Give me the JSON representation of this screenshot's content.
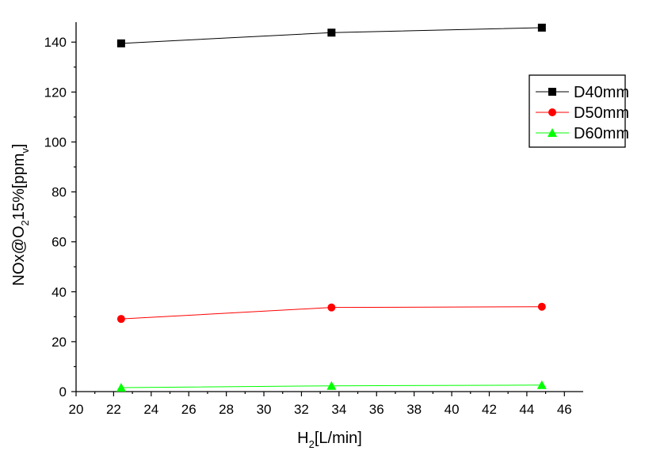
{
  "chart_data": {
    "type": "line",
    "x": [
      22.4,
      33.6,
      44.8
    ],
    "xlim": [
      20,
      47
    ],
    "ylim": [
      0,
      148
    ],
    "xticks": [
      20,
      22,
      24,
      26,
      28,
      30,
      32,
      34,
      36,
      38,
      40,
      42,
      44,
      46
    ],
    "yticks": [
      0,
      20,
      40,
      60,
      80,
      100,
      120,
      140
    ],
    "xlabel": {
      "main": "H",
      "sub": "2",
      "rest": "[L/min]"
    },
    "ylabel": {
      "a": "NOx@O",
      "sub1": "2",
      "b": "15%[ppm",
      "sub2": "v",
      "c": "]"
    },
    "grid": false,
    "legend_position": "top-right",
    "series": [
      {
        "name": "D40mm",
        "values": [
          139.5,
          143.8,
          145.8
        ],
        "color": "#000000",
        "marker": "square"
      },
      {
        "name": "D50mm",
        "values": [
          29.1,
          33.7,
          34.0
        ],
        "color": "#ff0000",
        "marker": "circle"
      },
      {
        "name": "D60mm",
        "values": [
          1.6,
          2.3,
          2.6
        ],
        "color": "#00ff00",
        "marker": "triangle"
      }
    ]
  }
}
